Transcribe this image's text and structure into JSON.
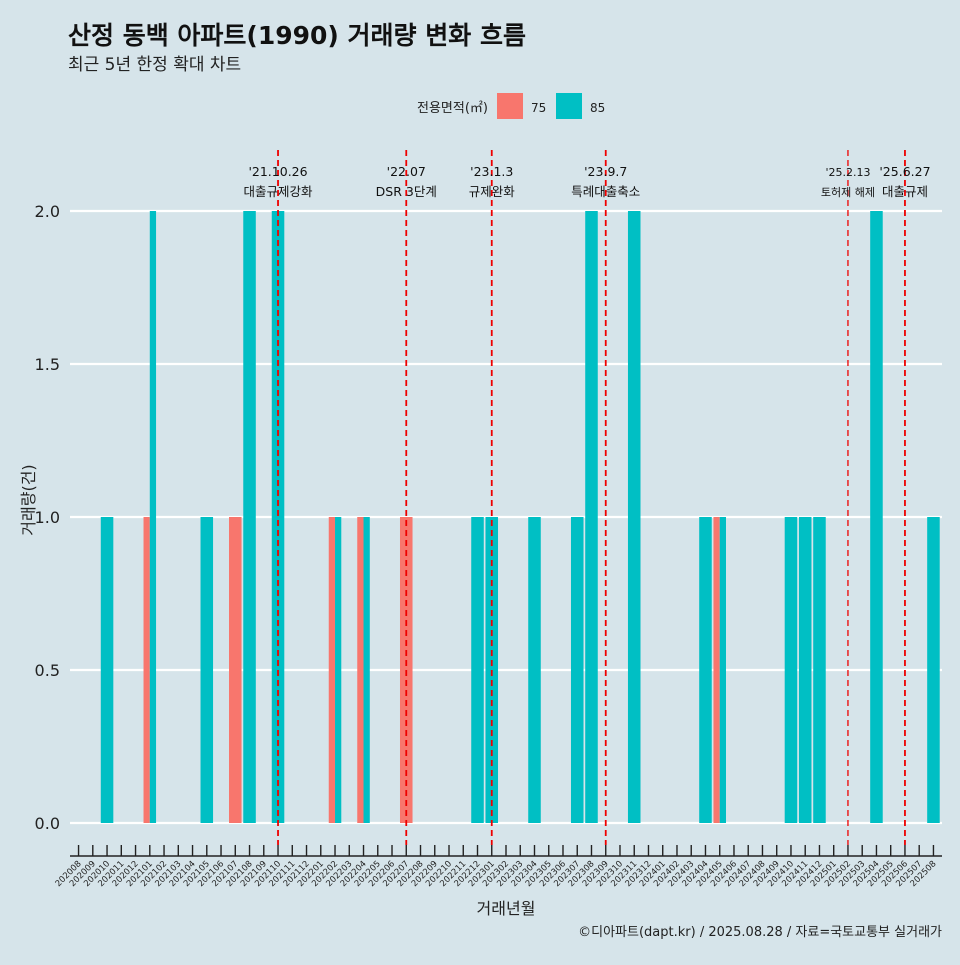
{
  "colors": {
    "background": "#d6e4ea",
    "grid": "#ffffff",
    "series_75": "#f8766d",
    "series_85": "#00bfc4",
    "event_line": "#ee0000",
    "axis": "#222222"
  },
  "chart_data": {
    "type": "bar",
    "title": "산정 동백 아파트(1990) 거래량 변화 흐름",
    "subtitle": "최근 5년 한정 확대 차트",
    "xlabel": "거래년월",
    "ylabel": "거래량(건)",
    "caption": "©디아파트(dapt.kr) / 2025.08.28 / 자료=국토교통부 실거래가",
    "ylim": [
      0,
      2
    ],
    "yticks": [
      "0.0",
      "0.5",
      "1.0",
      "1.5",
      "2.0"
    ],
    "grid": true,
    "legend": {
      "title": "전용면적(㎡)",
      "position": "top",
      "entries": [
        {
          "label": "75",
          "color": "#f8766d"
        },
        {
          "label": "85",
          "color": "#00bfc4"
        }
      ]
    },
    "categories": [
      "202008",
      "202009",
      "202010",
      "202011",
      "202012",
      "202101",
      "202102",
      "202103",
      "202104",
      "202105",
      "202106",
      "202107",
      "202108",
      "202109",
      "202110",
      "202111",
      "202112",
      "202201",
      "202202",
      "202203",
      "202204",
      "202205",
      "202206",
      "202207",
      "202208",
      "202209",
      "202210",
      "202211",
      "202212",
      "202301",
      "202302",
      "202303",
      "202304",
      "202305",
      "202306",
      "202307",
      "202308",
      "202309",
      "202310",
      "202311",
      "202312",
      "202401",
      "202402",
      "202403",
      "202404",
      "202405",
      "202406",
      "202407",
      "202408",
      "202409",
      "202410",
      "202411",
      "202412",
      "202501",
      "202502",
      "202503",
      "202504",
      "202505",
      "202506",
      "202507",
      "202508"
    ],
    "series": [
      {
        "name": "75",
        "values": [
          0,
          0,
          0,
          0,
          0,
          1,
          0,
          0,
          0,
          0,
          0,
          1,
          0,
          0,
          0,
          0,
          0,
          0,
          1,
          0,
          1,
          0,
          0,
          1,
          0,
          0,
          0,
          0,
          0,
          0,
          0,
          0,
          0,
          0,
          0,
          0,
          0,
          0,
          0,
          0,
          0,
          0,
          0,
          0,
          0,
          1,
          0,
          0,
          0,
          0,
          0,
          0,
          0,
          0,
          0,
          0,
          0,
          0,
          0,
          0,
          0
        ]
      },
      {
        "name": "85",
        "values": [
          0,
          0,
          1,
          0,
          0,
          2,
          0,
          0,
          0,
          1,
          0,
          0,
          2,
          0,
          2,
          0,
          0,
          0,
          1,
          0,
          1,
          0,
          0,
          0,
          0,
          0,
          0,
          0,
          1,
          1,
          0,
          0,
          1,
          0,
          0,
          1,
          2,
          0,
          0,
          2,
          0,
          0,
          0,
          0,
          1,
          1,
          0,
          0,
          0,
          0,
          1,
          1,
          1,
          0,
          0,
          0,
          2,
          0,
          0,
          0,
          1
        ]
      }
    ],
    "annotations": [
      {
        "date": "'21.10.26",
        "label": "대출규제강화",
        "at": 14.0
      },
      {
        "date": "'22.07",
        "label": "DSR 3단계",
        "at": 23.0
      },
      {
        "date": "'23.1.3",
        "label": "규제완화",
        "at": 29.0
      },
      {
        "date": "'23.9.7",
        "label": "특례대출축소",
        "at": 37.0
      },
      {
        "date": "'25.2.13",
        "label": "토허제 해제",
        "at": 54.0
      },
      {
        "date": "'25.6.27",
        "label": "대출규제",
        "at": 58.0
      }
    ]
  }
}
